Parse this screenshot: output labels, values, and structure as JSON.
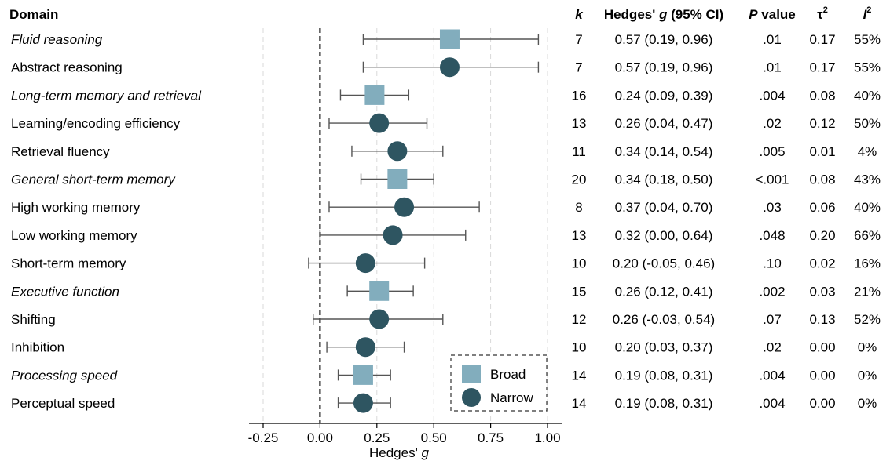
{
  "chart_data": {
    "type": "forest",
    "xlabel": "Hedges' g",
    "xlim": [
      -0.25,
      1.0
    ],
    "xticks": [
      "-0.25",
      "0.00",
      "0.25",
      "0.50",
      "0.75",
      "1.00"
    ],
    "grid": "vertical dashed",
    "reference_line": 0,
    "legend": {
      "placement": "bottom-right",
      "entries": [
        {
          "name": "Broad",
          "shape": "square",
          "color": "#82adbd"
        },
        {
          "name": "Narrow",
          "shape": "circle",
          "color": "#2e5561"
        }
      ]
    },
    "header": {
      "domain": "Domain",
      "k": "k",
      "hedges_prefix": "Hedges' ",
      "hedges_g": "g",
      "hedges_suffix": " (95% CI)",
      "p_italic": "P",
      "p_rest": " value",
      "tau": "τ",
      "tau_sup": "2",
      "i": "I",
      "i_sup": "2"
    },
    "rows": [
      {
        "domain": "Fluid reasoning",
        "type": "Broad",
        "g": 0.57,
        "ci": [
          0.19,
          0.96
        ],
        "k": "7",
        "effect": "0.57 (0.19, 0.96)",
        "p": ".01",
        "tau2": "0.17",
        "i2": "55%"
      },
      {
        "domain": "Abstract reasoning",
        "type": "Narrow",
        "g": 0.57,
        "ci": [
          0.19,
          0.96
        ],
        "k": "7",
        "effect": "0.57 (0.19, 0.96)",
        "p": ".01",
        "tau2": "0.17",
        "i2": "55%"
      },
      {
        "domain": "Long-term memory and retrieval",
        "type": "Broad",
        "g": 0.24,
        "ci": [
          0.09,
          0.39
        ],
        "k": "16",
        "effect": "0.24 (0.09, 0.39)",
        "p": ".004",
        "tau2": "0.08",
        "i2": "40%"
      },
      {
        "domain": "Learning/encoding efficiency",
        "type": "Narrow",
        "g": 0.26,
        "ci": [
          0.04,
          0.47
        ],
        "k": "13",
        "effect": "0.26 (0.04, 0.47)",
        "p": ".02",
        "tau2": "0.12",
        "i2": "50%"
      },
      {
        "domain": "Retrieval fluency",
        "type": "Narrow",
        "g": 0.34,
        "ci": [
          0.14,
          0.54
        ],
        "k": "11",
        "effect": "0.34 (0.14, 0.54)",
        "p": ".005",
        "tau2": "0.01",
        "i2": "4%"
      },
      {
        "domain": "General short-term memory",
        "type": "Broad",
        "g": 0.34,
        "ci": [
          0.18,
          0.5
        ],
        "k": "20",
        "effect": "0.34 (0.18, 0.50)",
        "p": "<.001",
        "tau2": "0.08",
        "i2": "43%"
      },
      {
        "domain": "High working memory",
        "type": "Narrow",
        "g": 0.37,
        "ci": [
          0.04,
          0.7
        ],
        "k": "8",
        "effect": "0.37 (0.04, 0.70)",
        "p": ".03",
        "tau2": "0.06",
        "i2": "40%"
      },
      {
        "domain": "Low working memory",
        "type": "Narrow",
        "g": 0.32,
        "ci": [
          0.0,
          0.64
        ],
        "k": "13",
        "effect": "0.32 (0.00, 0.64)",
        "p": ".048",
        "tau2": "0.20",
        "i2": "66%"
      },
      {
        "domain": "Short-term memory",
        "type": "Narrow",
        "g": 0.2,
        "ci": [
          -0.05,
          0.46
        ],
        "k": "10",
        "effect": "0.20 (-0.05, 0.46)",
        "p": ".10",
        "tau2": "0.02",
        "i2": "16%"
      },
      {
        "domain": "Executive function",
        "type": "Broad",
        "g": 0.26,
        "ci": [
          0.12,
          0.41
        ],
        "k": "15",
        "effect": "0.26 (0.12, 0.41)",
        "p": ".002",
        "tau2": "0.03",
        "i2": "21%"
      },
      {
        "domain": "Shifting",
        "type": "Narrow",
        "g": 0.26,
        "ci": [
          -0.03,
          0.54
        ],
        "k": "12",
        "effect": "0.26 (-0.03, 0.54)",
        "p": ".07",
        "tau2": "0.13",
        "i2": "52%"
      },
      {
        "domain": "Inhibition",
        "type": "Narrow",
        "g": 0.2,
        "ci": [
          0.03,
          0.37
        ],
        "k": "10",
        "effect": "0.20 (0.03, 0.37)",
        "p": ".02",
        "tau2": "0.00",
        "i2": "0%"
      },
      {
        "domain": "Processing speed",
        "type": "Broad",
        "g": 0.19,
        "ci": [
          0.08,
          0.31
        ],
        "k": "14",
        "effect": "0.19 (0.08, 0.31)",
        "p": ".004",
        "tau2": "0.00",
        "i2": "0%"
      },
      {
        "domain": "Perceptual speed",
        "type": "Narrow",
        "g": 0.19,
        "ci": [
          0.08,
          0.31
        ],
        "k": "14",
        "effect": "0.19 (0.08, 0.31)",
        "p": ".004",
        "tau2": "0.00",
        "i2": "0%"
      }
    ]
  }
}
